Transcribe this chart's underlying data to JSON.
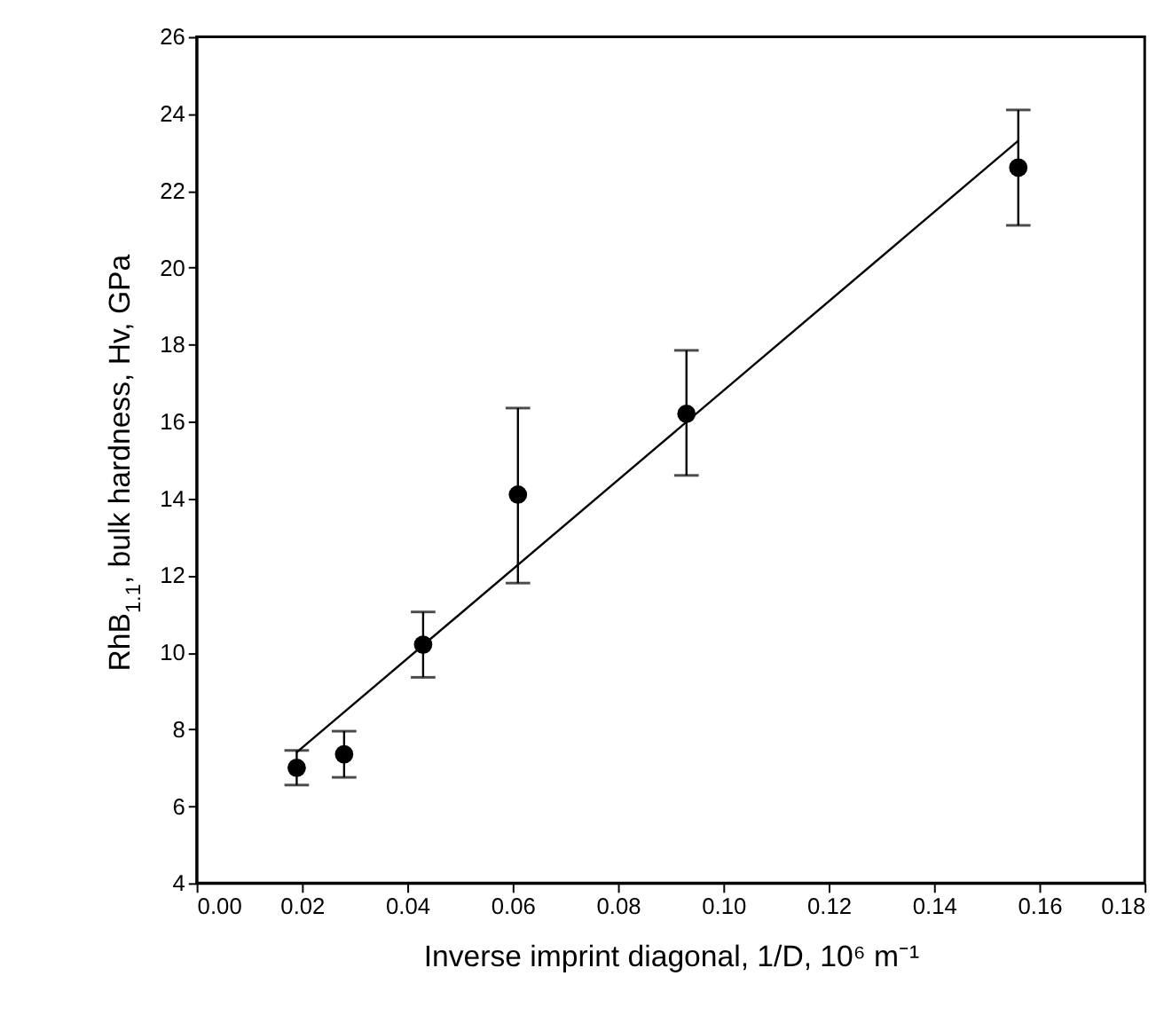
{
  "chart_data": {
    "type": "scatter",
    "xlabel": "Inverse imprint diagonal, 1/D, 10⁶ m⁻¹",
    "ylabel": "RhB$_{1.1}$, bulk hardness, Hv, GPa",
    "xlim": [
      0.0,
      0.18
    ],
    "xticks": [
      {
        "value": 0,
        "label": "0.00"
      },
      0.02,
      0.04,
      0.06,
      0.08,
      {
        "value": 0.1,
        "label": "0.10"
      },
      0.12,
      0.14,
      0.16,
      0.18
    ],
    "ylim": [
      4,
      26
    ],
    "yticks": [
      4,
      6,
      8,
      10,
      12,
      14,
      16,
      18,
      20,
      22,
      24,
      26
    ],
    "grid": false,
    "series": [
      {
        "type": "scatter",
        "color": "#000000",
        "marker": "circle",
        "x": [
          0.019,
          0.028,
          0.043,
          0.061,
          0.093,
          0.156
        ],
        "values": [
          7.0,
          7.35,
          10.2,
          14.1,
          16.2,
          22.6
        ],
        "errors": [
          [
            6.55,
            7.45
          ],
          [
            6.75,
            7.95
          ],
          [
            9.35,
            11.05
          ],
          [
            11.8,
            16.35
          ],
          [
            14.6,
            17.85
          ],
          [
            21.1,
            24.1
          ]
        ]
      },
      {
        "type": "line",
        "color": "#000000",
        "line_style": "solid",
        "x": [
          0.019,
          0.156
        ],
        "values": [
          7.4,
          23.3
        ]
      }
    ]
  }
}
